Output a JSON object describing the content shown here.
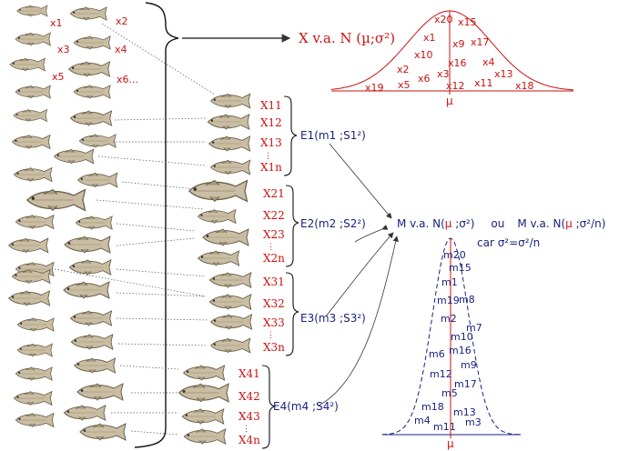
{
  "population_labels": [
    "x1",
    "x2",
    "x3",
    "x4",
    "x5",
    "x6..."
  ],
  "main_label": "X v.a. N (µ;σ²)",
  "top_curve": {
    "labels": [
      "x20",
      "x15",
      "x1",
      "x9",
      "x17",
      "x10",
      "x16",
      "x4",
      "x2",
      "x6",
      "x3",
      "x13",
      "x19",
      "x5",
      "x12",
      "x11",
      "x18"
    ],
    "mu": "µ"
  },
  "samples": [
    {
      "label": "E1(m1 ;S1²)",
      "items": [
        "X11",
        "X12",
        "X13",
        "⋮",
        "X1n"
      ]
    },
    {
      "label": "E2(m2 ;S2²)",
      "items": [
        "X21",
        "X22",
        "X23",
        "⋮",
        "X2n"
      ]
    },
    {
      "label": "E3(m3 ;S3²)",
      "items": [
        "X31",
        "X32",
        "X33",
        "⋮",
        "X3n"
      ]
    },
    {
      "label": "E4(m4 ;S4²)",
      "items": [
        "X41",
        "X42",
        "X43",
        "⋮",
        "X4n"
      ]
    }
  ],
  "m_formula": {
    "part1": "M v.a. N(",
    "mu1": "µ",
    "part2": " ;σ²)",
    "ou": "ou",
    "part3": "M v.a. N(",
    "mu2": "µ",
    "part4": " ;σ²/n)",
    "car": "car σ²=σ²/n"
  },
  "bottom_curve": {
    "labels": [
      "m20",
      "m15",
      "m1",
      "m19",
      "m8",
      "m2",
      "m7",
      "m10",
      "m6",
      "m16",
      "m9",
      "m12",
      "m17",
      "m5",
      "m18",
      "m13",
      "m4",
      "m3",
      "m11"
    ],
    "mu": "µ"
  },
  "colors": {
    "red": "#cc1111",
    "blue": "#1a237e",
    "fish": "#c9bda3"
  }
}
